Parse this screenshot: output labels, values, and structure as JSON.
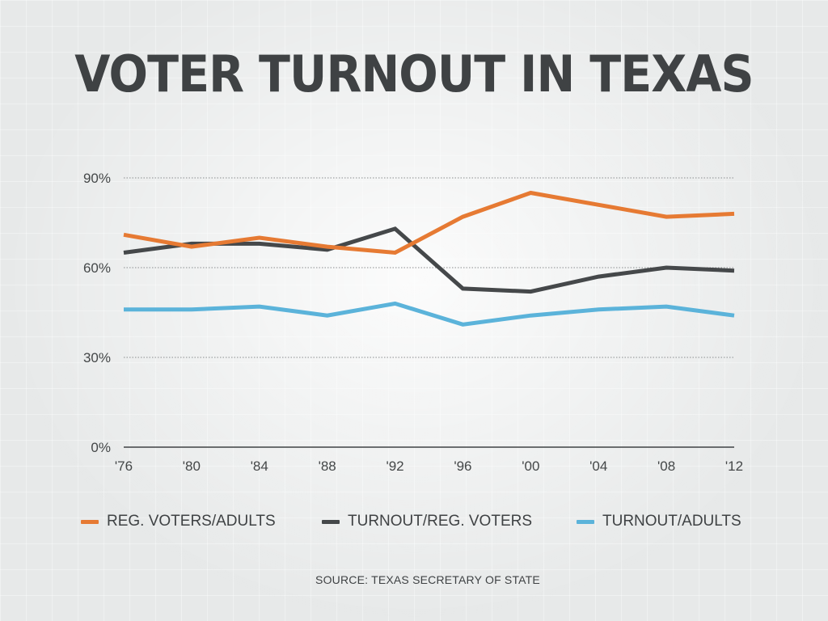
{
  "chart_data": {
    "type": "line",
    "title": "VOTER TURNOUT IN TEXAS",
    "categories": [
      "'76",
      "'80",
      "'84",
      "'88",
      "'92",
      "'96",
      "'00",
      "'04",
      "'08",
      "'12"
    ],
    "ylim": [
      0,
      90
    ],
    "yticks": [
      {
        "value": 0,
        "label": "0%"
      },
      {
        "value": 30,
        "label": "30%"
      },
      {
        "value": 60,
        "label": "60%"
      },
      {
        "value": 90,
        "label": "90%"
      }
    ],
    "grid": "horizontal-dotted",
    "legend_placement": "bottom",
    "series": [
      {
        "name": "REG. VOTERS/ADULTS",
        "color": "#e67a33",
        "values": [
          71,
          67,
          70,
          67,
          65,
          77,
          85,
          81,
          77,
          78
        ]
      },
      {
        "name": "TURNOUT/REG. VOTERS",
        "color": "#45484a",
        "values": [
          65,
          68,
          68,
          66,
          73,
          53,
          52,
          57,
          60,
          59
        ]
      },
      {
        "name": "TURNOUT/ADULTS",
        "color": "#5bb3da",
        "values": [
          46,
          46,
          47,
          44,
          48,
          41,
          44,
          46,
          47,
          44
        ]
      }
    ],
    "source": "SOURCE: TEXAS SECRETARY OF STATE"
  }
}
